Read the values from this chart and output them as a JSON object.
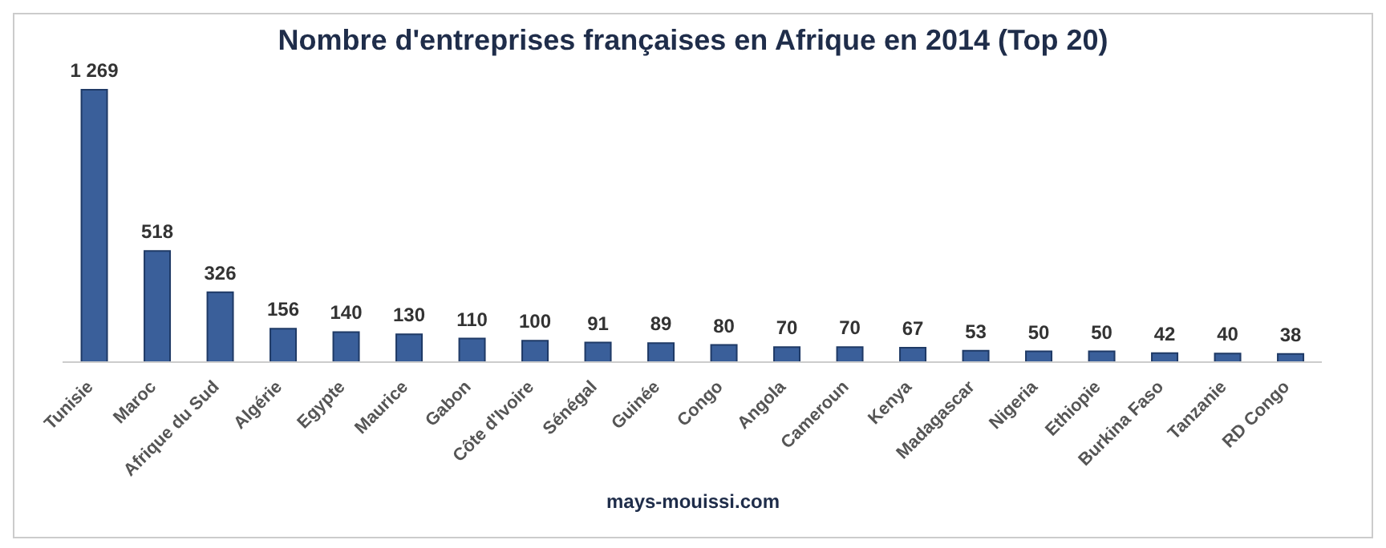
{
  "chart_data": {
    "type": "bar",
    "title": "Nombre d'entreprises françaises en Afrique en 2014 (Top 20)",
    "categories": [
      "Tunisie",
      "Maroc",
      "Afrique du Sud",
      "Algérie",
      "Egypte",
      "Maurice",
      "Gabon",
      "Côte d'Ivoire",
      "Sénégal",
      "Guinée",
      "Congo",
      "Angola",
      "Cameroun",
      "Kenya",
      "Madagascar",
      "Nigeria",
      "Ethiopie",
      "Burkina Faso",
      "Tanzanie",
      "RD Congo"
    ],
    "values": [
      1269,
      518,
      326,
      156,
      140,
      130,
      110,
      100,
      91,
      89,
      80,
      70,
      70,
      67,
      53,
      50,
      50,
      42,
      40,
      38
    ],
    "value_labels": [
      "1 269",
      "518",
      "326",
      "156",
      "140",
      "130",
      "110",
      "100",
      "91",
      "89",
      "80",
      "70",
      "70",
      "67",
      "53",
      "50",
      "50",
      "42",
      "40",
      "38"
    ],
    "color": "#3a5f9a",
    "annotations": [
      "mays-mouissi.com"
    ]
  }
}
